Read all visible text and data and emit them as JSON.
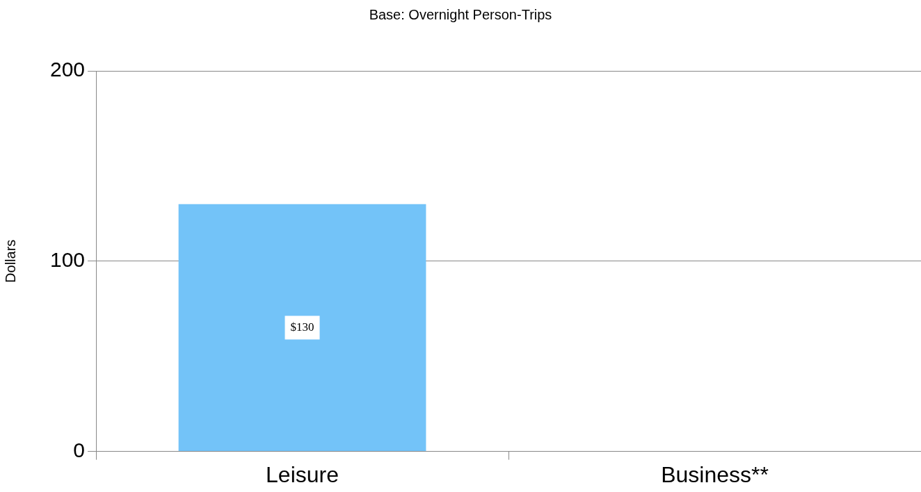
{
  "chart_data": {
    "type": "bar",
    "title": "Base: Overnight Person-Trips",
    "ylabel": "Dollars",
    "categories": [
      "Leisure",
      "Business**"
    ],
    "values": [
      130,
      null
    ],
    "value_labels": [
      "$130",
      null
    ],
    "color": "#73c3f8",
    "ylim": [
      0,
      200
    ],
    "yticks": [
      0,
      100,
      200
    ],
    "grid": "y",
    "legend": false
  }
}
